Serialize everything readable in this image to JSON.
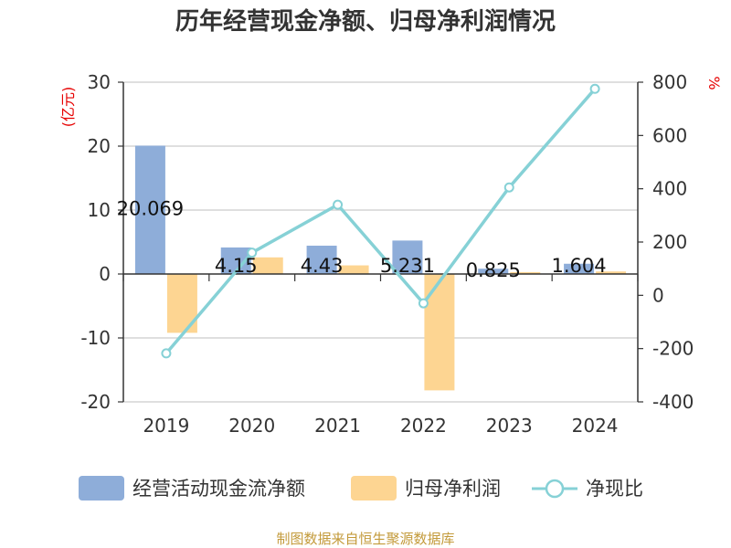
{
  "chart_data": {
    "type": "bar",
    "title": "历年经营现金净额、归母净利润情况",
    "categories": [
      "2019",
      "2020",
      "2021",
      "2022",
      "2023",
      "2024"
    ],
    "series": [
      {
        "name": "经营活动现金流净额",
        "type": "bar",
        "axis": "left",
        "color": "#8eadd9",
        "values": [
          20.069,
          4.15,
          4.43,
          5.231,
          0.825,
          1.604
        ],
        "labels": [
          "20.069",
          "4.15",
          "4.43",
          "5.231",
          "0.825",
          "1.604"
        ]
      },
      {
        "name": "归母净利润",
        "type": "bar",
        "axis": "left",
        "color": "#fdd592",
        "values": [
          -9.2,
          2.6,
          1.35,
          -18.2,
          0.3,
          0.4
        ]
      },
      {
        "name": "净现比",
        "type": "line",
        "axis": "right",
        "color": "#86d1d6",
        "values": [
          -218,
          160,
          340,
          -30,
          405,
          775
        ]
      }
    ],
    "y_left": {
      "label": "(亿元)",
      "ylim": [
        -20,
        30
      ],
      "ticks": [
        30,
        20,
        10,
        0,
        -10,
        -20
      ]
    },
    "y_right": {
      "label": "%",
      "ylim": [
        -400,
        800
      ],
      "ticks": [
        800,
        600,
        400,
        200,
        0,
        -200,
        -400
      ]
    },
    "source": "制图数据来自恒生聚源数据库"
  }
}
